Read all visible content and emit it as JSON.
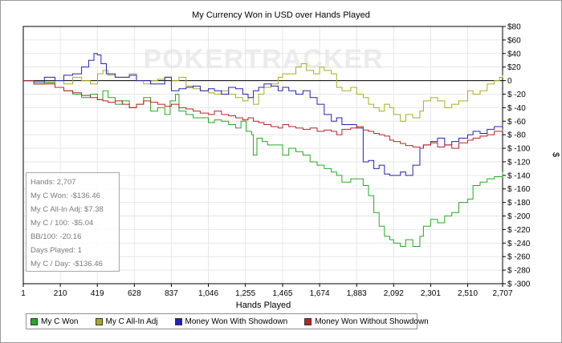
{
  "watermark": "POKERTRACKER",
  "stats": {
    "lines": [
      "Hands: 2,707",
      "My C Won: -$136.46",
      "My C All-In Adj: $7.38",
      "My C / 100: -$5.04",
      "BB/100: -20.16",
      "Days Played: 1",
      "My C / Day: -$136.46"
    ]
  },
  "chart_data": {
    "type": "line",
    "title": "My Currency Won in USD over Hands Played",
    "xlabel": "Hands Played",
    "ylabel": "$",
    "xlim": [
      1,
      2707
    ],
    "ylim": [
      -300,
      80
    ],
    "x_ticks": [
      1,
      210,
      419,
      628,
      837,
      1046,
      1255,
      1465,
      1674,
      1883,
      2092,
      2301,
      2510,
      2707
    ],
    "x_tick_labels": [
      "1",
      "210",
      "419",
      "628",
      "837",
      "1,046",
      "1,255",
      "1,465",
      "1,674",
      "1,883",
      "2,092",
      "2,301",
      "2,510",
      "2,707"
    ],
    "y_ticks": [
      80,
      60,
      40,
      20,
      0,
      -20,
      -40,
      -60,
      -80,
      -100,
      -120,
      -140,
      -160,
      -180,
      -200,
      -220,
      -240,
      -260,
      -280,
      -300
    ],
    "y_tick_labels": [
      "$80",
      "$60",
      "$40",
      "$20",
      "0",
      "$ -20",
      "$ -40",
      "$ -60",
      "$ -80",
      "$ -100",
      "$ -120",
      "$ -140",
      "$ -160",
      "$ -180",
      "$ -200",
      "$ -220",
      "$ -240",
      "$ -260",
      "$ -280",
      "$ -300"
    ],
    "grid": true,
    "legend_position": "bottom",
    "zero_line": true,
    "series": [
      {
        "name": "My C Won",
        "color": "#22aa22",
        "points": [
          [
            1,
            0
          ],
          [
            60,
            -5
          ],
          [
            120,
            -3
          ],
          [
            180,
            -10
          ],
          [
            230,
            -15
          ],
          [
            280,
            -20
          ],
          [
            330,
            -25
          ],
          [
            380,
            -20
          ],
          [
            420,
            -28
          ],
          [
            450,
            -15
          ],
          [
            480,
            -25
          ],
          [
            520,
            -35
          ],
          [
            560,
            -30
          ],
          [
            600,
            -40
          ],
          [
            640,
            -35
          ],
          [
            680,
            -25
          ],
          [
            720,
            -45
          ],
          [
            760,
            -40
          ],
          [
            800,
            -50
          ],
          [
            830,
            -30
          ],
          [
            860,
            -20
          ],
          [
            880,
            -45
          ],
          [
            920,
            -50
          ],
          [
            960,
            -55
          ],
          [
            1000,
            -55
          ],
          [
            1046,
            -62
          ],
          [
            1080,
            -58
          ],
          [
            1120,
            -60
          ],
          [
            1160,
            -65
          ],
          [
            1200,
            -70
          ],
          [
            1230,
            -60
          ],
          [
            1260,
            -75
          ],
          [
            1290,
            -80
          ],
          [
            1300,
            -110
          ],
          [
            1320,
            -85
          ],
          [
            1350,
            -90
          ],
          [
            1380,
            -95
          ],
          [
            1420,
            -95
          ],
          [
            1465,
            -110
          ],
          [
            1500,
            -100
          ],
          [
            1540,
            -105
          ],
          [
            1580,
            -110
          ],
          [
            1620,
            -120
          ],
          [
            1660,
            -125
          ],
          [
            1700,
            -130
          ],
          [
            1740,
            -135
          ],
          [
            1770,
            -140
          ],
          [
            1800,
            -150
          ],
          [
            1850,
            -145
          ],
          [
            1883,
            -145
          ],
          [
            1920,
            -155
          ],
          [
            1950,
            -170
          ],
          [
            1980,
            -195
          ],
          [
            2010,
            -215
          ],
          [
            2040,
            -230
          ],
          [
            2070,
            -235
          ],
          [
            2092,
            -240
          ],
          [
            2130,
            -245
          ],
          [
            2160,
            -235
          ],
          [
            2200,
            -245
          ],
          [
            2240,
            -230
          ],
          [
            2260,
            -215
          ],
          [
            2301,
            -205
          ],
          [
            2340,
            -210
          ],
          [
            2380,
            -200
          ],
          [
            2420,
            -195
          ],
          [
            2460,
            -180
          ],
          [
            2510,
            -175
          ],
          [
            2540,
            -155
          ],
          [
            2580,
            -150
          ],
          [
            2620,
            -145
          ],
          [
            2660,
            -142
          ],
          [
            2707,
            -135
          ]
        ]
      },
      {
        "name": "My C All-In Adj",
        "color": "#aaaa22",
        "points": [
          [
            1,
            0
          ],
          [
            60,
            -5
          ],
          [
            120,
            -2
          ],
          [
            180,
            0
          ],
          [
            230,
            -5
          ],
          [
            280,
            5
          ],
          [
            330,
            0
          ],
          [
            380,
            -5
          ],
          [
            420,
            10
          ],
          [
            450,
            15
          ],
          [
            480,
            8
          ],
          [
            520,
            5
          ],
          [
            560,
            5
          ],
          [
            600,
            10
          ],
          [
            640,
            0
          ],
          [
            680,
            -5
          ],
          [
            720,
            0
          ],
          [
            760,
            2
          ],
          [
            800,
            5
          ],
          [
            837,
            0
          ],
          [
            880,
            5
          ],
          [
            920,
            -8
          ],
          [
            960,
            -12
          ],
          [
            1000,
            -15
          ],
          [
            1046,
            -18
          ],
          [
            1080,
            -20
          ],
          [
            1120,
            -15
          ],
          [
            1160,
            -20
          ],
          [
            1200,
            -25
          ],
          [
            1240,
            -30
          ],
          [
            1270,
            -25
          ],
          [
            1300,
            -35
          ],
          [
            1330,
            -20
          ],
          [
            1360,
            -10
          ],
          [
            1400,
            -5
          ],
          [
            1440,
            5
          ],
          [
            1465,
            10
          ],
          [
            1500,
            10
          ],
          [
            1540,
            20
          ],
          [
            1570,
            25
          ],
          [
            1600,
            15
          ],
          [
            1640,
            10
          ],
          [
            1674,
            20
          ],
          [
            1700,
            15
          ],
          [
            1740,
            10
          ],
          [
            1770,
            -10
          ],
          [
            1800,
            -15
          ],
          [
            1850,
            -10
          ],
          [
            1883,
            -20
          ],
          [
            1920,
            -25
          ],
          [
            1950,
            -35
          ],
          [
            1980,
            -40
          ],
          [
            2010,
            -45
          ],
          [
            2040,
            -35
          ],
          [
            2070,
            -40
          ],
          [
            2092,
            -50
          ],
          [
            2130,
            -60
          ],
          [
            2160,
            -50
          ],
          [
            2200,
            -55
          ],
          [
            2240,
            -45
          ],
          [
            2260,
            -30
          ],
          [
            2301,
            -25
          ],
          [
            2340,
            -30
          ],
          [
            2380,
            -40
          ],
          [
            2420,
            -35
          ],
          [
            2460,
            -30
          ],
          [
            2510,
            -15
          ],
          [
            2540,
            -20
          ],
          [
            2580,
            -15
          ],
          [
            2620,
            -5
          ],
          [
            2660,
            0
          ],
          [
            2690,
            5
          ],
          [
            2707,
            8
          ]
        ]
      },
      {
        "name": "Money Won With Showdown",
        "color": "#2222bb",
        "points": [
          [
            1,
            0
          ],
          [
            60,
            -2
          ],
          [
            120,
            5
          ],
          [
            180,
            0
          ],
          [
            230,
            8
          ],
          [
            280,
            10
          ],
          [
            330,
            20
          ],
          [
            370,
            30
          ],
          [
            400,
            40
          ],
          [
            419,
            38
          ],
          [
            440,
            25
          ],
          [
            470,
            10
          ],
          [
            520,
            5
          ],
          [
            560,
            5
          ],
          [
            600,
            8
          ],
          [
            640,
            0
          ],
          [
            680,
            0
          ],
          [
            720,
            -5
          ],
          [
            760,
            -5
          ],
          [
            800,
            5
          ],
          [
            837,
            -15
          ],
          [
            880,
            -12
          ],
          [
            920,
            -10
          ],
          [
            960,
            -8
          ],
          [
            1000,
            -15
          ],
          [
            1046,
            -12
          ],
          [
            1080,
            -15
          ],
          [
            1120,
            -20
          ],
          [
            1160,
            -10
          ],
          [
            1200,
            -12
          ],
          [
            1240,
            -20
          ],
          [
            1270,
            -25
          ],
          [
            1300,
            -15
          ],
          [
            1330,
            -10
          ],
          [
            1360,
            -5
          ],
          [
            1400,
            -8
          ],
          [
            1440,
            -15
          ],
          [
            1465,
            -10
          ],
          [
            1500,
            -15
          ],
          [
            1540,
            -20
          ],
          [
            1580,
            -15
          ],
          [
            1620,
            -25
          ],
          [
            1660,
            -35
          ],
          [
            1700,
            -50
          ],
          [
            1740,
            -60
          ],
          [
            1770,
            -55
          ],
          [
            1800,
            -65
          ],
          [
            1850,
            -65
          ],
          [
            1883,
            -70
          ],
          [
            1920,
            -120
          ],
          [
            1950,
            -118
          ],
          [
            1980,
            -130
          ],
          [
            2010,
            -125
          ],
          [
            2040,
            -138
          ],
          [
            2070,
            -140
          ],
          [
            2092,
            -140
          ],
          [
            2130,
            -135
          ],
          [
            2160,
            -140
          ],
          [
            2200,
            -125
          ],
          [
            2240,
            -100
          ],
          [
            2260,
            -95
          ],
          [
            2301,
            -90
          ],
          [
            2340,
            -85
          ],
          [
            2380,
            -95
          ],
          [
            2420,
            -90
          ],
          [
            2460,
            -85
          ],
          [
            2510,
            -80
          ],
          [
            2540,
            -75
          ],
          [
            2580,
            -78
          ],
          [
            2620,
            -72
          ],
          [
            2660,
            -68
          ],
          [
            2707,
            -66
          ]
        ]
      },
      {
        "name": "Money Won Without Showdown",
        "color": "#bb2222",
        "points": [
          [
            1,
            0
          ],
          [
            60,
            -5
          ],
          [
            120,
            -5
          ],
          [
            180,
            -10
          ],
          [
            230,
            -15
          ],
          [
            280,
            -18
          ],
          [
            330,
            -22
          ],
          [
            380,
            -25
          ],
          [
            419,
            -28
          ],
          [
            450,
            -30
          ],
          [
            480,
            -32
          ],
          [
            520,
            -30
          ],
          [
            560,
            -35
          ],
          [
            600,
            -40
          ],
          [
            640,
            -35
          ],
          [
            680,
            -30
          ],
          [
            720,
            -32
          ],
          [
            760,
            -35
          ],
          [
            800,
            -38
          ],
          [
            837,
            -35
          ],
          [
            880,
            -40
          ],
          [
            920,
            -42
          ],
          [
            960,
            -45
          ],
          [
            1000,
            -48
          ],
          [
            1046,
            -50
          ],
          [
            1080,
            -45
          ],
          [
            1120,
            -50
          ],
          [
            1160,
            -52
          ],
          [
            1200,
            -55
          ],
          [
            1240,
            -58
          ],
          [
            1270,
            -55
          ],
          [
            1300,
            -60
          ],
          [
            1330,
            -62
          ],
          [
            1360,
            -65
          ],
          [
            1400,
            -68
          ],
          [
            1440,
            -70
          ],
          [
            1465,
            -65
          ],
          [
            1500,
            -68
          ],
          [
            1540,
            -70
          ],
          [
            1580,
            -72
          ],
          [
            1620,
            -70
          ],
          [
            1660,
            -75
          ],
          [
            1700,
            -73
          ],
          [
            1740,
            -75
          ],
          [
            1770,
            -80
          ],
          [
            1800,
            -72
          ],
          [
            1850,
            -70
          ],
          [
            1883,
            -68
          ],
          [
            1920,
            -73
          ],
          [
            1950,
            -75
          ],
          [
            1980,
            -78
          ],
          [
            2010,
            -80
          ],
          [
            2040,
            -82
          ],
          [
            2070,
            -88
          ],
          [
            2092,
            -90
          ],
          [
            2130,
            -93
          ],
          [
            2160,
            -96
          ],
          [
            2200,
            -98
          ],
          [
            2240,
            -100
          ],
          [
            2260,
            -95
          ],
          [
            2301,
            -92
          ],
          [
            2340,
            -98
          ],
          [
            2380,
            -95
          ],
          [
            2420,
            -100
          ],
          [
            2460,
            -92
          ],
          [
            2510,
            -88
          ],
          [
            2540,
            -85
          ],
          [
            2580,
            -82
          ],
          [
            2620,
            -80
          ],
          [
            2660,
            -75
          ],
          [
            2707,
            -72
          ]
        ]
      }
    ]
  }
}
